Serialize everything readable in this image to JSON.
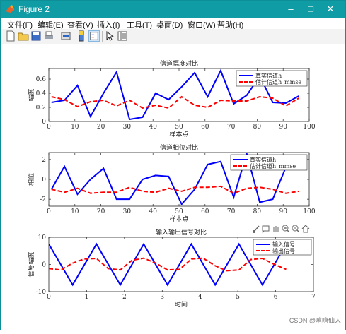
{
  "window": {
    "title": "Figure 2"
  },
  "menu": [
    {
      "label": "文件(F)"
    },
    {
      "label": "编辑(E)"
    },
    {
      "label": "查看(V)"
    },
    {
      "label": "插入(I)"
    },
    {
      "label": "工具(T)"
    },
    {
      "label": "桌面(D)"
    },
    {
      "label": "窗口(W)"
    },
    {
      "label": "帮助(H)"
    }
  ],
  "toolbar_icons": [
    "new-figure-icon",
    "open-icon",
    "save-icon",
    "print-icon",
    "link-icon",
    "colorbar-icon",
    "legend-icon",
    "pointer-icon",
    "property-inspector-icon"
  ],
  "axes_toolbar_icons": [
    "brush-icon",
    "data-tip-icon",
    "pan-icon",
    "zoom-in-icon",
    "zoom-out-icon",
    "home-icon"
  ],
  "watermark": "CSDN @嘻嘻仙人",
  "colors": {
    "titlebar": "#0f9ca5",
    "series_blue": "#0000ff",
    "series_red": "#ff0000"
  },
  "chart_data": [
    {
      "type": "line",
      "title": "信道幅度对比",
      "xlabel": "样本点",
      "ylabel": "幅度",
      "xlim": [
        0,
        100
      ],
      "ylim": [
        0,
        0.75
      ],
      "xticks": [
        0,
        10,
        20,
        30,
        40,
        50,
        60,
        70,
        80,
        90,
        100
      ],
      "xtick_labels": [
        "0",
        "10",
        "20",
        "30",
        "40",
        "50",
        "60",
        "70",
        "80",
        "90",
        "100"
      ],
      "yticks": [
        0,
        0.2,
        0.4,
        0.6
      ],
      "ytick_labels": [
        "0",
        "0.2",
        "0.4",
        "0.6"
      ],
      "legend": "top-right",
      "series": [
        {
          "name": "真实信道h",
          "style": "solid",
          "color": "#0000ff",
          "x": [
            1,
            6,
            11,
            16,
            21,
            26,
            31,
            36,
            41,
            46,
            51,
            56,
            61,
            66,
            71,
            76,
            81,
            86,
            91,
            96
          ],
          "y": [
            0.27,
            0.3,
            0.51,
            0.07,
            0.4,
            0.7,
            0.03,
            0.06,
            0.4,
            0.31,
            0.49,
            0.69,
            0.35,
            0.72,
            0.25,
            0.37,
            0.64,
            0.27,
            0.26,
            0.36
          ]
        },
        {
          "name": "估计信道h_mmse",
          "style": "dashed",
          "color": "#ff0000",
          "x": [
            1,
            6,
            11,
            16,
            21,
            26,
            31,
            36,
            41,
            46,
            51,
            56,
            61,
            66,
            71,
            76,
            81,
            86,
            91,
            96
          ],
          "y": [
            0.35,
            0.31,
            0.21,
            0.28,
            0.3,
            0.22,
            0.3,
            0.19,
            0.23,
            0.19,
            0.35,
            0.23,
            0.2,
            0.3,
            0.29,
            0.29,
            0.35,
            0.33,
            0.22,
            0.33
          ]
        }
      ]
    },
    {
      "type": "line",
      "title": "信道相位对比",
      "xlabel": "样本点",
      "ylabel": "相位",
      "xlim": [
        0,
        100
      ],
      "ylim": [
        -2.7,
        2.7
      ],
      "xticks": [
        0,
        10,
        20,
        30,
        40,
        50,
        60,
        70,
        80,
        90,
        100
      ],
      "xtick_labels": [
        "0",
        "10",
        "20",
        "30",
        "40",
        "50",
        "60",
        "70",
        "80",
        "90",
        "100"
      ],
      "yticks": [
        -2,
        0,
        2
      ],
      "ytick_labels": [
        "-2",
        "0",
        "2"
      ],
      "legend": "top-right",
      "series": [
        {
          "name": "真实信道h",
          "style": "solid",
          "color": "#0000ff",
          "x": [
            1,
            6,
            11,
            16,
            21,
            26,
            31,
            36,
            41,
            46,
            51,
            56,
            61,
            66,
            71,
            76,
            81,
            86,
            91,
            96
          ],
          "y": [
            -1.0,
            1.3,
            -1.5,
            0.0,
            1.1,
            -2.0,
            -2.0,
            0.0,
            0.4,
            0.3,
            -2.5,
            -1.0,
            1.5,
            1.8,
            -1.8,
            2.6,
            -2.3,
            -2.0,
            1.2,
            1.7
          ]
        },
        {
          "name": "估计信道h_mmse",
          "style": "dashed",
          "color": "#ff0000",
          "x": [
            1,
            6,
            11,
            16,
            21,
            26,
            31,
            36,
            41,
            46,
            51,
            56,
            61,
            66,
            71,
            76,
            81,
            86,
            91,
            96
          ],
          "y": [
            -1.0,
            -1.3,
            -0.9,
            -1.4,
            -1.3,
            -1.3,
            -0.8,
            -1.2,
            -1.3,
            -0.9,
            -1.2,
            -0.8,
            -0.8,
            -0.7,
            -1.4,
            -0.9,
            -0.8,
            -1.0,
            -1.4,
            -1.2
          ]
        }
      ]
    },
    {
      "type": "line",
      "title": "输入输出信号对比",
      "xlabel": "时间",
      "ylabel": "信号幅度",
      "xlim": [
        0,
        7
      ],
      "ylim": [
        -10,
        10
      ],
      "xticks": [
        0,
        1,
        2,
        3,
        4,
        5,
        6,
        7
      ],
      "xtick_labels": [
        "0",
        "1",
        "2",
        "3",
        "4",
        "5",
        "6",
        "7"
      ],
      "yticks": [
        -10,
        0,
        10
      ],
      "ytick_labels": [
        "-10",
        "0",
        "10"
      ],
      "legend": "top-right",
      "series": [
        {
          "name": "输入信号",
          "style": "solid",
          "color": "#0000ff",
          "x": [
            0,
            0.63,
            1.26,
            1.89,
            2.51,
            3.14,
            3.77,
            4.4,
            5.03,
            5.65,
            6.28
          ],
          "y": [
            7.5,
            -7.5,
            7.5,
            -7.5,
            7.5,
            -7.5,
            7.5,
            -7.5,
            7.5,
            -7.5,
            7.5
          ]
        },
        {
          "name": "输出信号",
          "style": "dashed",
          "color": "#ff0000",
          "x": [
            0,
            0.32,
            0.63,
            0.94,
            1.26,
            1.57,
            1.89,
            2.2,
            2.51,
            2.83,
            3.14,
            3.46,
            3.77,
            4.08,
            4.4,
            4.71,
            5.03,
            5.34,
            5.65,
            5.97,
            6.28
          ],
          "y": [
            -1.5,
            -2.0,
            0.5,
            2.0,
            2.2,
            -1.5,
            -2.0,
            1.5,
            2.3,
            0.5,
            -2.0,
            -1.8,
            2.0,
            2.3,
            -0.5,
            -2.3,
            -2.0,
            1.8,
            2.2,
            0.0,
            -1.8
          ]
        }
      ]
    }
  ]
}
